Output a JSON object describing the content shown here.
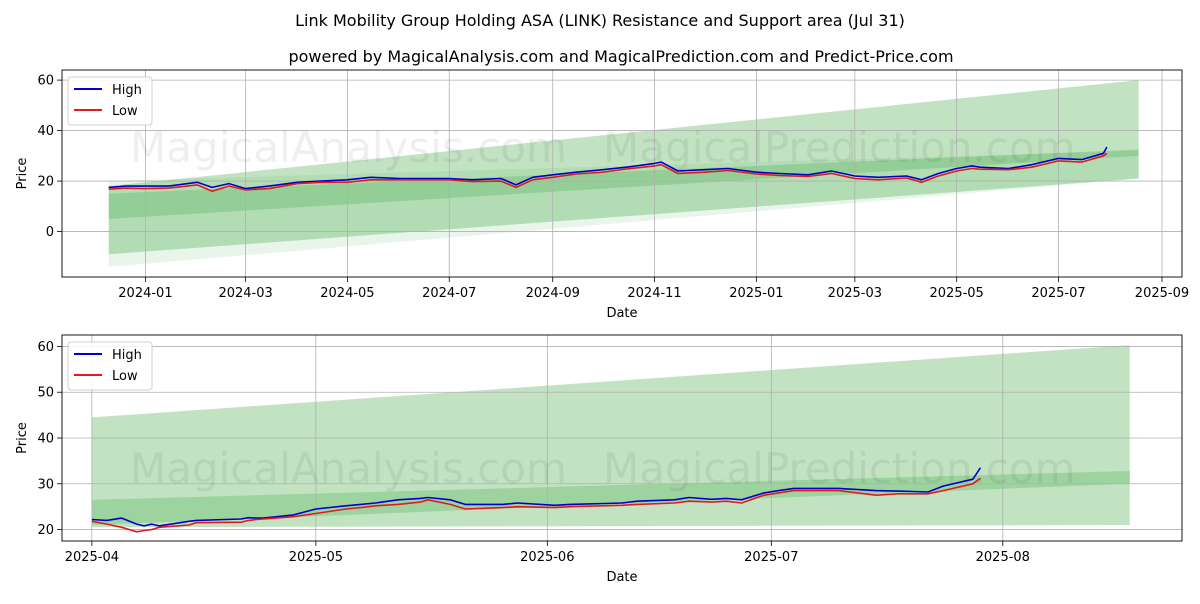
{
  "title": "Link Mobility Group Holding ASA (LINK) Resistance and Support area (Jul 31)",
  "subtitle": "powered by MagicalAnalysis.com and MagicalPrediction.com and Predict-Price.com",
  "watermarks": [
    "MagicalAnalysis.com",
    "MagicalPrediction.com"
  ],
  "colors": {
    "high": "#0000cc",
    "low": "#e31a1c",
    "band": "#4caf50",
    "grid": "#b0b0b0"
  },
  "chart_data": [
    {
      "type": "line",
      "xlabel": "Date",
      "ylabel": "Price",
      "ylim": [
        -18,
        64
      ],
      "xlim": [
        "2023-11-12",
        "2025-09-13"
      ],
      "grid": true,
      "legend": "top-left",
      "xticks": [
        "2024-01",
        "2024-03",
        "2024-05",
        "2024-07",
        "2024-09",
        "2024-11",
        "2025-01",
        "2025-03",
        "2025-05",
        "2025-07",
        "2025-09"
      ],
      "yticks": [
        0,
        20,
        40,
        60
      ],
      "bands": [
        {
          "x": [
            "2023-12-10",
            "2025-08-18"
          ],
          "upper": [
            18,
            60
          ],
          "lower": [
            -9,
            21
          ],
          "opacity": 0.35
        },
        {
          "x": [
            "2023-12-10",
            "2025-08-18"
          ],
          "upper": [
            15,
            32.5
          ],
          "lower": [
            5,
            30
          ],
          "opacity": 0.3
        },
        {
          "x": [
            "2023-12-10",
            "2025-08-18"
          ],
          "upper": [
            20,
            32
          ],
          "lower": [
            -14,
            21
          ],
          "opacity": 0.12
        }
      ],
      "series": [
        {
          "name": "High",
          "x": [
            "2023-12-10",
            "2023-12-20",
            "2024-01-01",
            "2024-01-15",
            "2024-02-01",
            "2024-02-10",
            "2024-02-20",
            "2024-03-01",
            "2024-03-15",
            "2024-04-01",
            "2024-04-15",
            "2024-05-01",
            "2024-05-15",
            "2024-06-01",
            "2024-06-15",
            "2024-07-01",
            "2024-07-15",
            "2024-08-01",
            "2024-08-10",
            "2024-08-20",
            "2024-09-01",
            "2024-09-15",
            "2024-10-01",
            "2024-10-15",
            "2024-11-01",
            "2024-11-05",
            "2024-11-15",
            "2024-12-01",
            "2024-12-15",
            "2025-01-01",
            "2025-01-15",
            "2025-02-01",
            "2025-02-15",
            "2025-03-01",
            "2025-03-15",
            "2025-04-01",
            "2025-04-10",
            "2025-04-20",
            "2025-05-01",
            "2025-05-10",
            "2025-05-15",
            "2025-06-01",
            "2025-06-15",
            "2025-07-01",
            "2025-07-15",
            "2025-07-28",
            "2025-07-30"
          ],
          "values": [
            17.5,
            18,
            18,
            18,
            19.5,
            17.5,
            19,
            17,
            18,
            19.5,
            20,
            20.5,
            21.5,
            21,
            21,
            21,
            20.5,
            21,
            18.5,
            21.5,
            22.5,
            23.5,
            24.5,
            25.5,
            27,
            27.5,
            24,
            24.5,
            25,
            23.5,
            23,
            22.5,
            24,
            22,
            21.5,
            22,
            20.5,
            23,
            25,
            26,
            25.5,
            25,
            26.5,
            29,
            28.5,
            31,
            33.5
          ]
        },
        {
          "name": "Low",
          "x": [
            "2023-12-10",
            "2023-12-20",
            "2024-01-01",
            "2024-01-15",
            "2024-02-01",
            "2024-02-10",
            "2024-02-20",
            "2024-03-01",
            "2024-03-15",
            "2024-04-01",
            "2024-04-15",
            "2024-05-01",
            "2024-05-15",
            "2024-06-01",
            "2024-06-15",
            "2024-07-01",
            "2024-07-15",
            "2024-08-01",
            "2024-08-10",
            "2024-08-20",
            "2024-09-01",
            "2024-09-15",
            "2024-10-01",
            "2024-10-15",
            "2024-11-01",
            "2024-11-05",
            "2024-11-15",
            "2024-12-01",
            "2024-12-15",
            "2025-01-01",
            "2025-01-15",
            "2025-02-01",
            "2025-02-15",
            "2025-03-01",
            "2025-03-15",
            "2025-04-01",
            "2025-04-10",
            "2025-04-20",
            "2025-05-01",
            "2025-05-10",
            "2025-05-15",
            "2025-06-01",
            "2025-06-15",
            "2025-07-01",
            "2025-07-15",
            "2025-07-28",
            "2025-07-30"
          ],
          "values": [
            16.8,
            17.2,
            17,
            17.2,
            18.5,
            16,
            18,
            16.5,
            17,
            19,
            19.5,
            19.5,
            20.5,
            20.5,
            20.5,
            20.5,
            19.8,
            20,
            17.5,
            20.5,
            21.5,
            22.8,
            23.5,
            24.8,
            26,
            26.5,
            23,
            23.5,
            24.2,
            22.8,
            22.2,
            21.8,
            23,
            21,
            20.5,
            21.2,
            19.5,
            22,
            24,
            25,
            24.7,
            24.5,
            25.5,
            28,
            27.5,
            30,
            31
          ]
        }
      ]
    },
    {
      "type": "line",
      "xlabel": "Date",
      "ylabel": "Price",
      "ylim": [
        17.5,
        62.5
      ],
      "xlim": [
        "2025-03-28",
        "2025-08-25"
      ],
      "grid": true,
      "legend": "top-left",
      "xticks": [
        "2025-04",
        "2025-05",
        "2025-06",
        "2025-07",
        "2025-08"
      ],
      "yticks": [
        20,
        30,
        40,
        50,
        60
      ],
      "bands": [
        {
          "x": [
            "2025-04-01",
            "2025-08-18"
          ],
          "upper": [
            44.5,
            60.3
          ],
          "lower": [
            20.5,
            21
          ],
          "opacity": 0.35
        },
        {
          "x": [
            "2025-04-01",
            "2025-08-18"
          ],
          "upper": [
            26.5,
            32.8
          ],
          "lower": [
            21,
            30
          ],
          "opacity": 0.3
        }
      ],
      "series": [
        {
          "name": "High",
          "x": [
            "2025-04-01",
            "2025-04-03",
            "2025-04-05",
            "2025-04-07",
            "2025-04-08",
            "2025-04-09",
            "2025-04-10",
            "2025-04-14",
            "2025-04-15",
            "2025-04-21",
            "2025-04-22",
            "2025-04-23",
            "2025-04-24",
            "2025-04-28",
            "2025-05-01",
            "2025-05-05",
            "2025-05-07",
            "2025-05-09",
            "2025-05-12",
            "2025-05-15",
            "2025-05-16",
            "2025-05-19",
            "2025-05-21",
            "2025-05-26",
            "2025-05-28",
            "2025-06-02",
            "2025-06-04",
            "2025-06-11",
            "2025-06-13",
            "2025-06-18",
            "2025-06-20",
            "2025-06-23",
            "2025-06-25",
            "2025-06-27",
            "2025-06-30",
            "2025-07-02",
            "2025-07-04",
            "2025-07-10",
            "2025-07-15",
            "2025-07-18",
            "2025-07-22",
            "2025-07-24",
            "2025-07-28",
            "2025-07-29"
          ],
          "values": [
            22.2,
            22,
            22.5,
            21.2,
            20.8,
            21.2,
            20.8,
            21.8,
            22,
            22.3,
            22.6,
            22.5,
            22.5,
            23.2,
            24.5,
            25.2,
            25.5,
            25.8,
            26.5,
            26.8,
            27,
            26.5,
            25.5,
            25.5,
            25.8,
            25.3,
            25.5,
            25.8,
            26.2,
            26.5,
            27,
            26.6,
            26.8,
            26.5,
            28,
            28.5,
            29,
            29,
            28.5,
            28.4,
            28.2,
            29.5,
            31,
            33.5
          ]
        },
        {
          "name": "Low",
          "x": [
            "2025-04-01",
            "2025-04-03",
            "2025-04-05",
            "2025-04-07",
            "2025-04-08",
            "2025-04-09",
            "2025-04-10",
            "2025-04-14",
            "2025-04-15",
            "2025-04-21",
            "2025-04-22",
            "2025-04-23",
            "2025-04-24",
            "2025-04-28",
            "2025-05-01",
            "2025-05-05",
            "2025-05-07",
            "2025-05-09",
            "2025-05-12",
            "2025-05-15",
            "2025-05-16",
            "2025-05-19",
            "2025-05-21",
            "2025-05-26",
            "2025-05-28",
            "2025-06-02",
            "2025-06-04",
            "2025-06-11",
            "2025-06-13",
            "2025-06-18",
            "2025-06-20",
            "2025-06-23",
            "2025-06-25",
            "2025-06-27",
            "2025-06-30",
            "2025-07-02",
            "2025-07-04",
            "2025-07-10",
            "2025-07-15",
            "2025-07-18",
            "2025-07-22",
            "2025-07-24",
            "2025-07-28",
            "2025-07-29"
          ],
          "values": [
            21.8,
            21.2,
            20.5,
            19.5,
            19.8,
            20,
            20.5,
            21,
            21.5,
            21.6,
            22,
            22.2,
            22.3,
            22.8,
            23.5,
            24.5,
            24.8,
            25.2,
            25.5,
            26,
            26.5,
            25.5,
            24.5,
            24.8,
            25,
            24.8,
            25,
            25.3,
            25.5,
            25.8,
            26.2,
            26,
            26.2,
            25.8,
            27.5,
            28,
            28.5,
            28.5,
            27.5,
            27.8,
            27.8,
            28.5,
            30,
            31.2
          ]
        }
      ]
    }
  ]
}
